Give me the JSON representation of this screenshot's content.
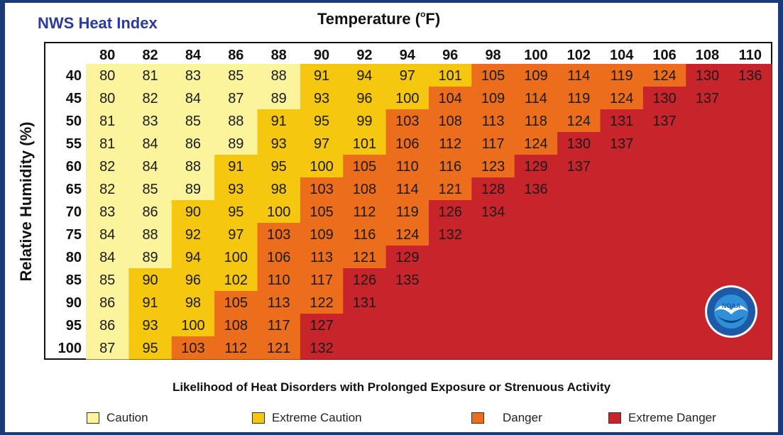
{
  "header": {
    "title": "NWS Heat Index",
    "x_title": "Temperature (",
    "x_title_sup": "o",
    "x_title_end": "F)",
    "y_title": "Relative Humidity (%)"
  },
  "footer": {
    "subtitle": "Likelihood of Heat Disorders with Prolonged Exposure or Strenuous Activity"
  },
  "legend": [
    {
      "label": "Caution",
      "color": "#fbf49c"
    },
    {
      "label": "Extreme Caution",
      "color": "#f5c70e"
    },
    {
      "label": "Danger",
      "color": "#ec6d1c"
    },
    {
      "label": "Extreme Danger",
      "color": "#c8242b"
    }
  ],
  "logo": {
    "text": "NOAA",
    "icon": "noaa-logo-icon"
  },
  "chart_data": {
    "type": "heatmap",
    "title": "NWS Heat Index",
    "xlabel": "Temperature (°F)",
    "ylabel": "Relative Humidity (%)",
    "x": [
      80,
      82,
      84,
      86,
      88,
      90,
      92,
      94,
      96,
      98,
      100,
      102,
      104,
      106,
      108,
      110
    ],
    "y": [
      40,
      45,
      50,
      55,
      60,
      65,
      70,
      75,
      80,
      85,
      90,
      95,
      100
    ],
    "values": [
      [
        80,
        81,
        83,
        85,
        88,
        91,
        94,
        97,
        101,
        105,
        109,
        114,
        119,
        124,
        130,
        136
      ],
      [
        80,
        82,
        84,
        87,
        89,
        93,
        96,
        100,
        104,
        109,
        114,
        119,
        124,
        130,
        137,
        null
      ],
      [
        81,
        83,
        85,
        88,
        91,
        95,
        99,
        103,
        108,
        113,
        118,
        124,
        131,
        137,
        null,
        null
      ],
      [
        81,
        84,
        86,
        89,
        93,
        97,
        101,
        106,
        112,
        117,
        124,
        130,
        137,
        null,
        null,
        null
      ],
      [
        82,
        84,
        88,
        91,
        95,
        100,
        105,
        110,
        116,
        123,
        129,
        137,
        null,
        null,
        null,
        null
      ],
      [
        82,
        85,
        89,
        93,
        98,
        103,
        108,
        114,
        121,
        128,
        136,
        null,
        null,
        null,
        null,
        null
      ],
      [
        83,
        86,
        90,
        95,
        100,
        105,
        112,
        119,
        126,
        134,
        null,
        null,
        null,
        null,
        null,
        null
      ],
      [
        84,
        88,
        92,
        97,
        103,
        109,
        116,
        124,
        132,
        null,
        null,
        null,
        null,
        null,
        null,
        null
      ],
      [
        84,
        89,
        94,
        100,
        106,
        113,
        121,
        129,
        null,
        null,
        null,
        null,
        null,
        null,
        null,
        null
      ],
      [
        85,
        90,
        96,
        102,
        110,
        117,
        126,
        135,
        null,
        null,
        null,
        null,
        null,
        null,
        null,
        null
      ],
      [
        86,
        91,
        98,
        105,
        113,
        122,
        131,
        null,
        null,
        null,
        null,
        null,
        null,
        null,
        null,
        null
      ],
      [
        86,
        93,
        100,
        108,
        117,
        127,
        null,
        null,
        null,
        null,
        null,
        null,
        null,
        null,
        null,
        null
      ],
      [
        87,
        95,
        103,
        112,
        121,
        132,
        null,
        null,
        null,
        null,
        null,
        null,
        null,
        null,
        null,
        null
      ]
    ],
    "categories": [
      "Caution",
      "Extreme Caution",
      "Danger",
      "Extreme Danger"
    ],
    "category_thresholds": [
      80,
      90,
      103,
      125
    ],
    "colors": {
      "caution": "#fbf49c",
      "extreme_caution": "#f5c70e",
      "danger": "#ec6d1c",
      "extreme_danger": "#c8242b"
    }
  }
}
